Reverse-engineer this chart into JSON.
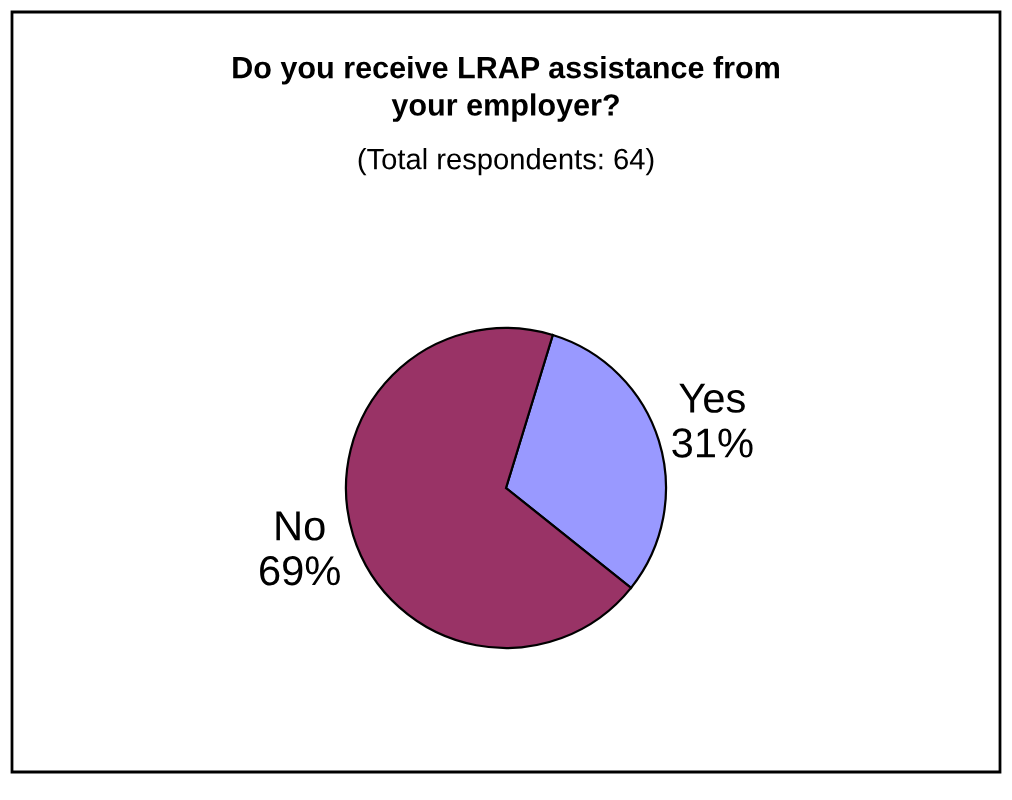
{
  "chart_data": {
    "type": "pie",
    "title": "Do you receive LRAP assistance from\nyour employer?",
    "subtitle": "(Total respondents: 64)",
    "categories": [
      "Yes",
      "No"
    ],
    "values": [
      31,
      69
    ],
    "value_labels": [
      "31%",
      "69%"
    ],
    "colors": [
      "#9999ff",
      "#993366"
    ],
    "legend": false
  }
}
